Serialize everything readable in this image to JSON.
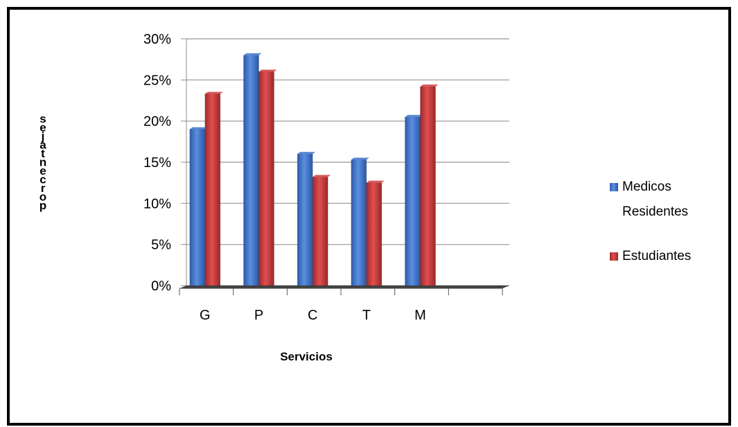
{
  "chart_data": {
    "type": "bar",
    "categories": [
      "G",
      "P",
      "C",
      "T",
      "M"
    ],
    "series": [
      {
        "name": "Medicos Residentes",
        "values": [
          19,
          28,
          16,
          15.3,
          20.5
        ]
      },
      {
        "name": "Estudiantes",
        "values": [
          23.3,
          26,
          13.2,
          12.5,
          24.2
        ]
      }
    ],
    "xlabel": "Servicios",
    "ylabel": "porcentajes",
    "ylim": [
      0,
      30
    ],
    "yticks": [
      "0%",
      "5%",
      "10%",
      "15%",
      "20%",
      "25%",
      "30%"
    ],
    "grid": true,
    "legend": "right",
    "colors": {
      "series0": "#3a6fc4",
      "series1": "#c0393b"
    },
    "legend_lines": [
      [
        "Medicos",
        "Residentes"
      ],
      [
        "Estudiantes"
      ]
    ]
  }
}
